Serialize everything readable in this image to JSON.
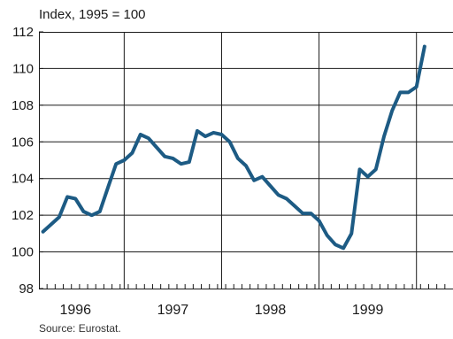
{
  "chart_data": {
    "type": "line",
    "ylabel": "Index, 1995 = 100",
    "ylim": [
      98,
      112
    ],
    "yticks": [
      98,
      100,
      102,
      104,
      106,
      108,
      110,
      112
    ],
    "xlim": [
      1995.625,
      1999.875
    ],
    "year_labels": [
      {
        "year": 1996,
        "label": "1996"
      },
      {
        "year": 1997,
        "label": "1997"
      },
      {
        "year": 1998,
        "label": "1998"
      },
      {
        "year": 1999,
        "label": "1999"
      }
    ],
    "colors": {
      "line": "#1d5b84",
      "axis": "#1a1a1a",
      "grid": "#1a1a1a"
    },
    "grid": true,
    "series": [
      {
        "values": [
          [
            1995.667,
            101.1
          ],
          [
            1995.75,
            101.5
          ],
          [
            1995.833,
            101.9
          ],
          [
            1995.917,
            103.0
          ],
          [
            1996.0,
            102.9
          ],
          [
            1996.083,
            102.2
          ],
          [
            1996.167,
            102.0
          ],
          [
            1996.25,
            102.2
          ],
          [
            1996.333,
            103.5
          ],
          [
            1996.417,
            104.8
          ],
          [
            1996.5,
            105.0
          ],
          [
            1996.583,
            105.4
          ],
          [
            1996.667,
            106.4
          ],
          [
            1996.75,
            106.2
          ],
          [
            1996.833,
            105.7
          ],
          [
            1996.917,
            105.2
          ],
          [
            1997.0,
            105.1
          ],
          [
            1997.083,
            104.8
          ],
          [
            1997.167,
            104.9
          ],
          [
            1997.25,
            106.6
          ],
          [
            1997.333,
            106.3
          ],
          [
            1997.417,
            106.5
          ],
          [
            1997.5,
            106.4
          ],
          [
            1997.583,
            106.0
          ],
          [
            1997.667,
            105.1
          ],
          [
            1997.75,
            104.7
          ],
          [
            1997.833,
            103.9
          ],
          [
            1997.917,
            104.1
          ],
          [
            1998.0,
            103.6
          ],
          [
            1998.083,
            103.1
          ],
          [
            1998.167,
            102.9
          ],
          [
            1998.25,
            102.5
          ],
          [
            1998.333,
            102.1
          ],
          [
            1998.417,
            102.1
          ],
          [
            1998.5,
            101.7
          ],
          [
            1998.583,
            100.9
          ],
          [
            1998.667,
            100.4
          ],
          [
            1998.75,
            100.2
          ],
          [
            1998.833,
            101.0
          ],
          [
            1998.917,
            104.5
          ],
          [
            1999.0,
            104.1
          ],
          [
            1999.083,
            104.5
          ],
          [
            1999.167,
            106.3
          ],
          [
            1999.25,
            107.7
          ],
          [
            1999.333,
            108.7
          ],
          [
            1999.417,
            108.7
          ],
          [
            1999.5,
            109.0
          ],
          [
            1999.583,
            111.2
          ]
        ]
      }
    ]
  },
  "footer": {
    "source": "Source: Eurostat."
  }
}
